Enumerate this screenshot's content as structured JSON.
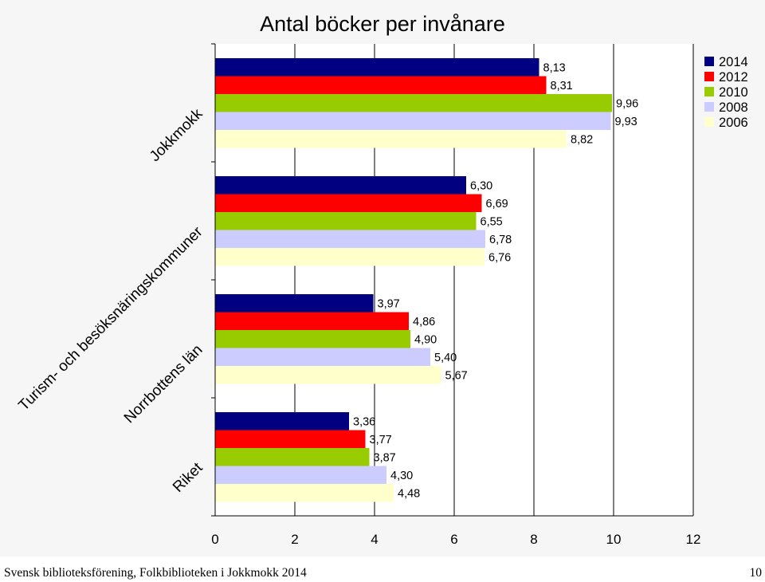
{
  "chart_data": {
    "type": "bar",
    "orientation": "horizontal",
    "title": "Antal böcker per invånare",
    "categories": [
      "Jokkmokk",
      "Turism- och besöksnäringskommuner",
      "Norrbottens län",
      "Riket"
    ],
    "series": [
      {
        "name": "2014",
        "color": "#000080",
        "values": [
          8.13,
          6.3,
          3.97,
          3.36
        ],
        "labels": [
          "8,13",
          "6,30",
          "3,97",
          "3,36"
        ]
      },
      {
        "name": "2012",
        "color": "#ff0000",
        "values": [
          8.31,
          6.69,
          4.86,
          3.77
        ],
        "labels": [
          "8,31",
          "6,69",
          "4,86",
          "3,77"
        ]
      },
      {
        "name": "2010",
        "color": "#99cc00",
        "values": [
          9.96,
          6.55,
          4.9,
          3.87
        ],
        "labels": [
          "9,96",
          "6,55",
          "4,90",
          "3,87"
        ]
      },
      {
        "name": "2008",
        "color": "#ccccff",
        "values": [
          9.93,
          6.78,
          5.4,
          4.3
        ],
        "labels": [
          "9,93",
          "6,78",
          "5,40",
          "4,30"
        ]
      },
      {
        "name": "2006",
        "color": "#ffffcc",
        "values": [
          8.82,
          6.76,
          5.67,
          4.48
        ],
        "labels": [
          "8,82",
          "6,76",
          "5,67",
          "4,48"
        ]
      }
    ],
    "xlim": [
      0,
      12
    ],
    "xticks": [
      0,
      2,
      4,
      6,
      8,
      10,
      12
    ],
    "grid": true,
    "legend": "top-right"
  },
  "footer": {
    "source": "Svensk biblioteksförening, Folkbiblioteken i Jokkmokk 2014",
    "page_number": "10"
  }
}
